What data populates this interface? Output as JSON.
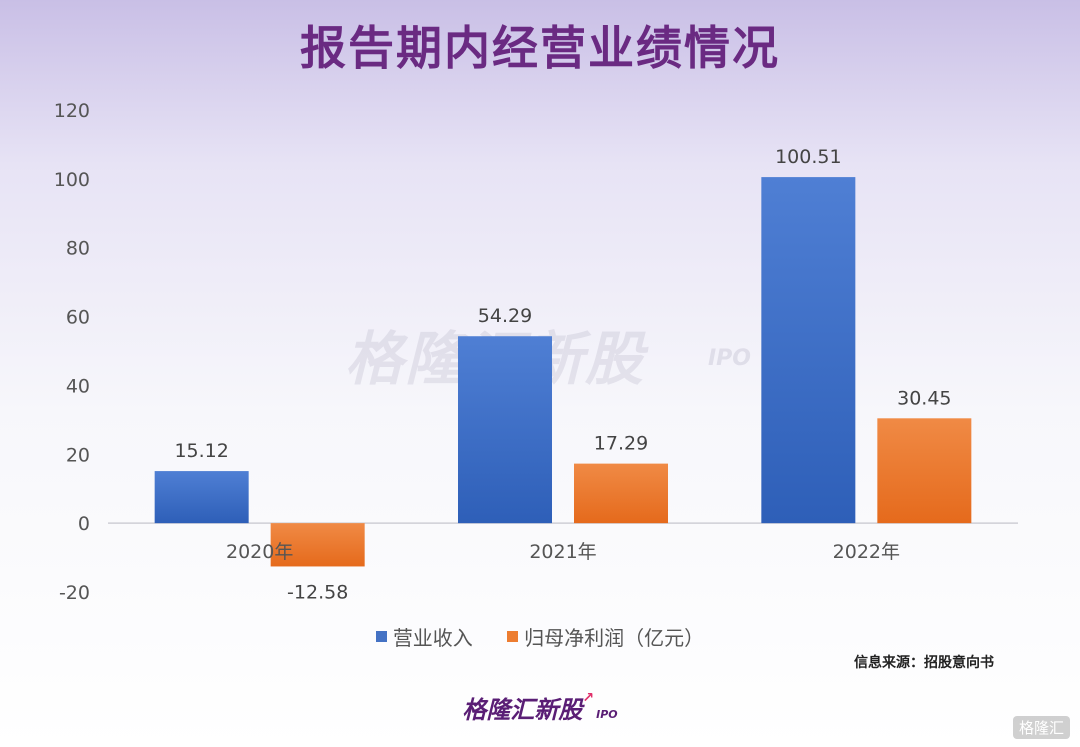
{
  "title": "报告期内经营业绩情况",
  "watermark": {
    "main": "格隆汇新股",
    "sub": "IPO"
  },
  "source": "信息来源：招股意向书",
  "footer": {
    "logo": "格隆汇新股",
    "sub": "IPO"
  },
  "corner_badge": "格隆汇",
  "colors": {
    "revenue": "#4472c4",
    "profit": "#ed7d31",
    "title": "#6a2a82"
  },
  "chart_data": {
    "type": "bar",
    "categories": [
      "2020年",
      "2021年",
      "2022年"
    ],
    "series": [
      {
        "name": "营业收入",
        "values": [
          15.12,
          54.29,
          100.51
        ],
        "labels": [
          "15.12",
          "54.29",
          "100.51"
        ]
      },
      {
        "name": "归母净利润（亿元）",
        "values": [
          -12.58,
          17.29,
          30.45
        ],
        "labels": [
          "-12.58",
          "17.29",
          "30.45"
        ]
      }
    ],
    "ylim": [
      -20,
      120
    ],
    "yticks": [
      -20,
      0,
      20,
      40,
      60,
      80,
      100,
      120
    ],
    "legend_position": "bottom"
  }
}
